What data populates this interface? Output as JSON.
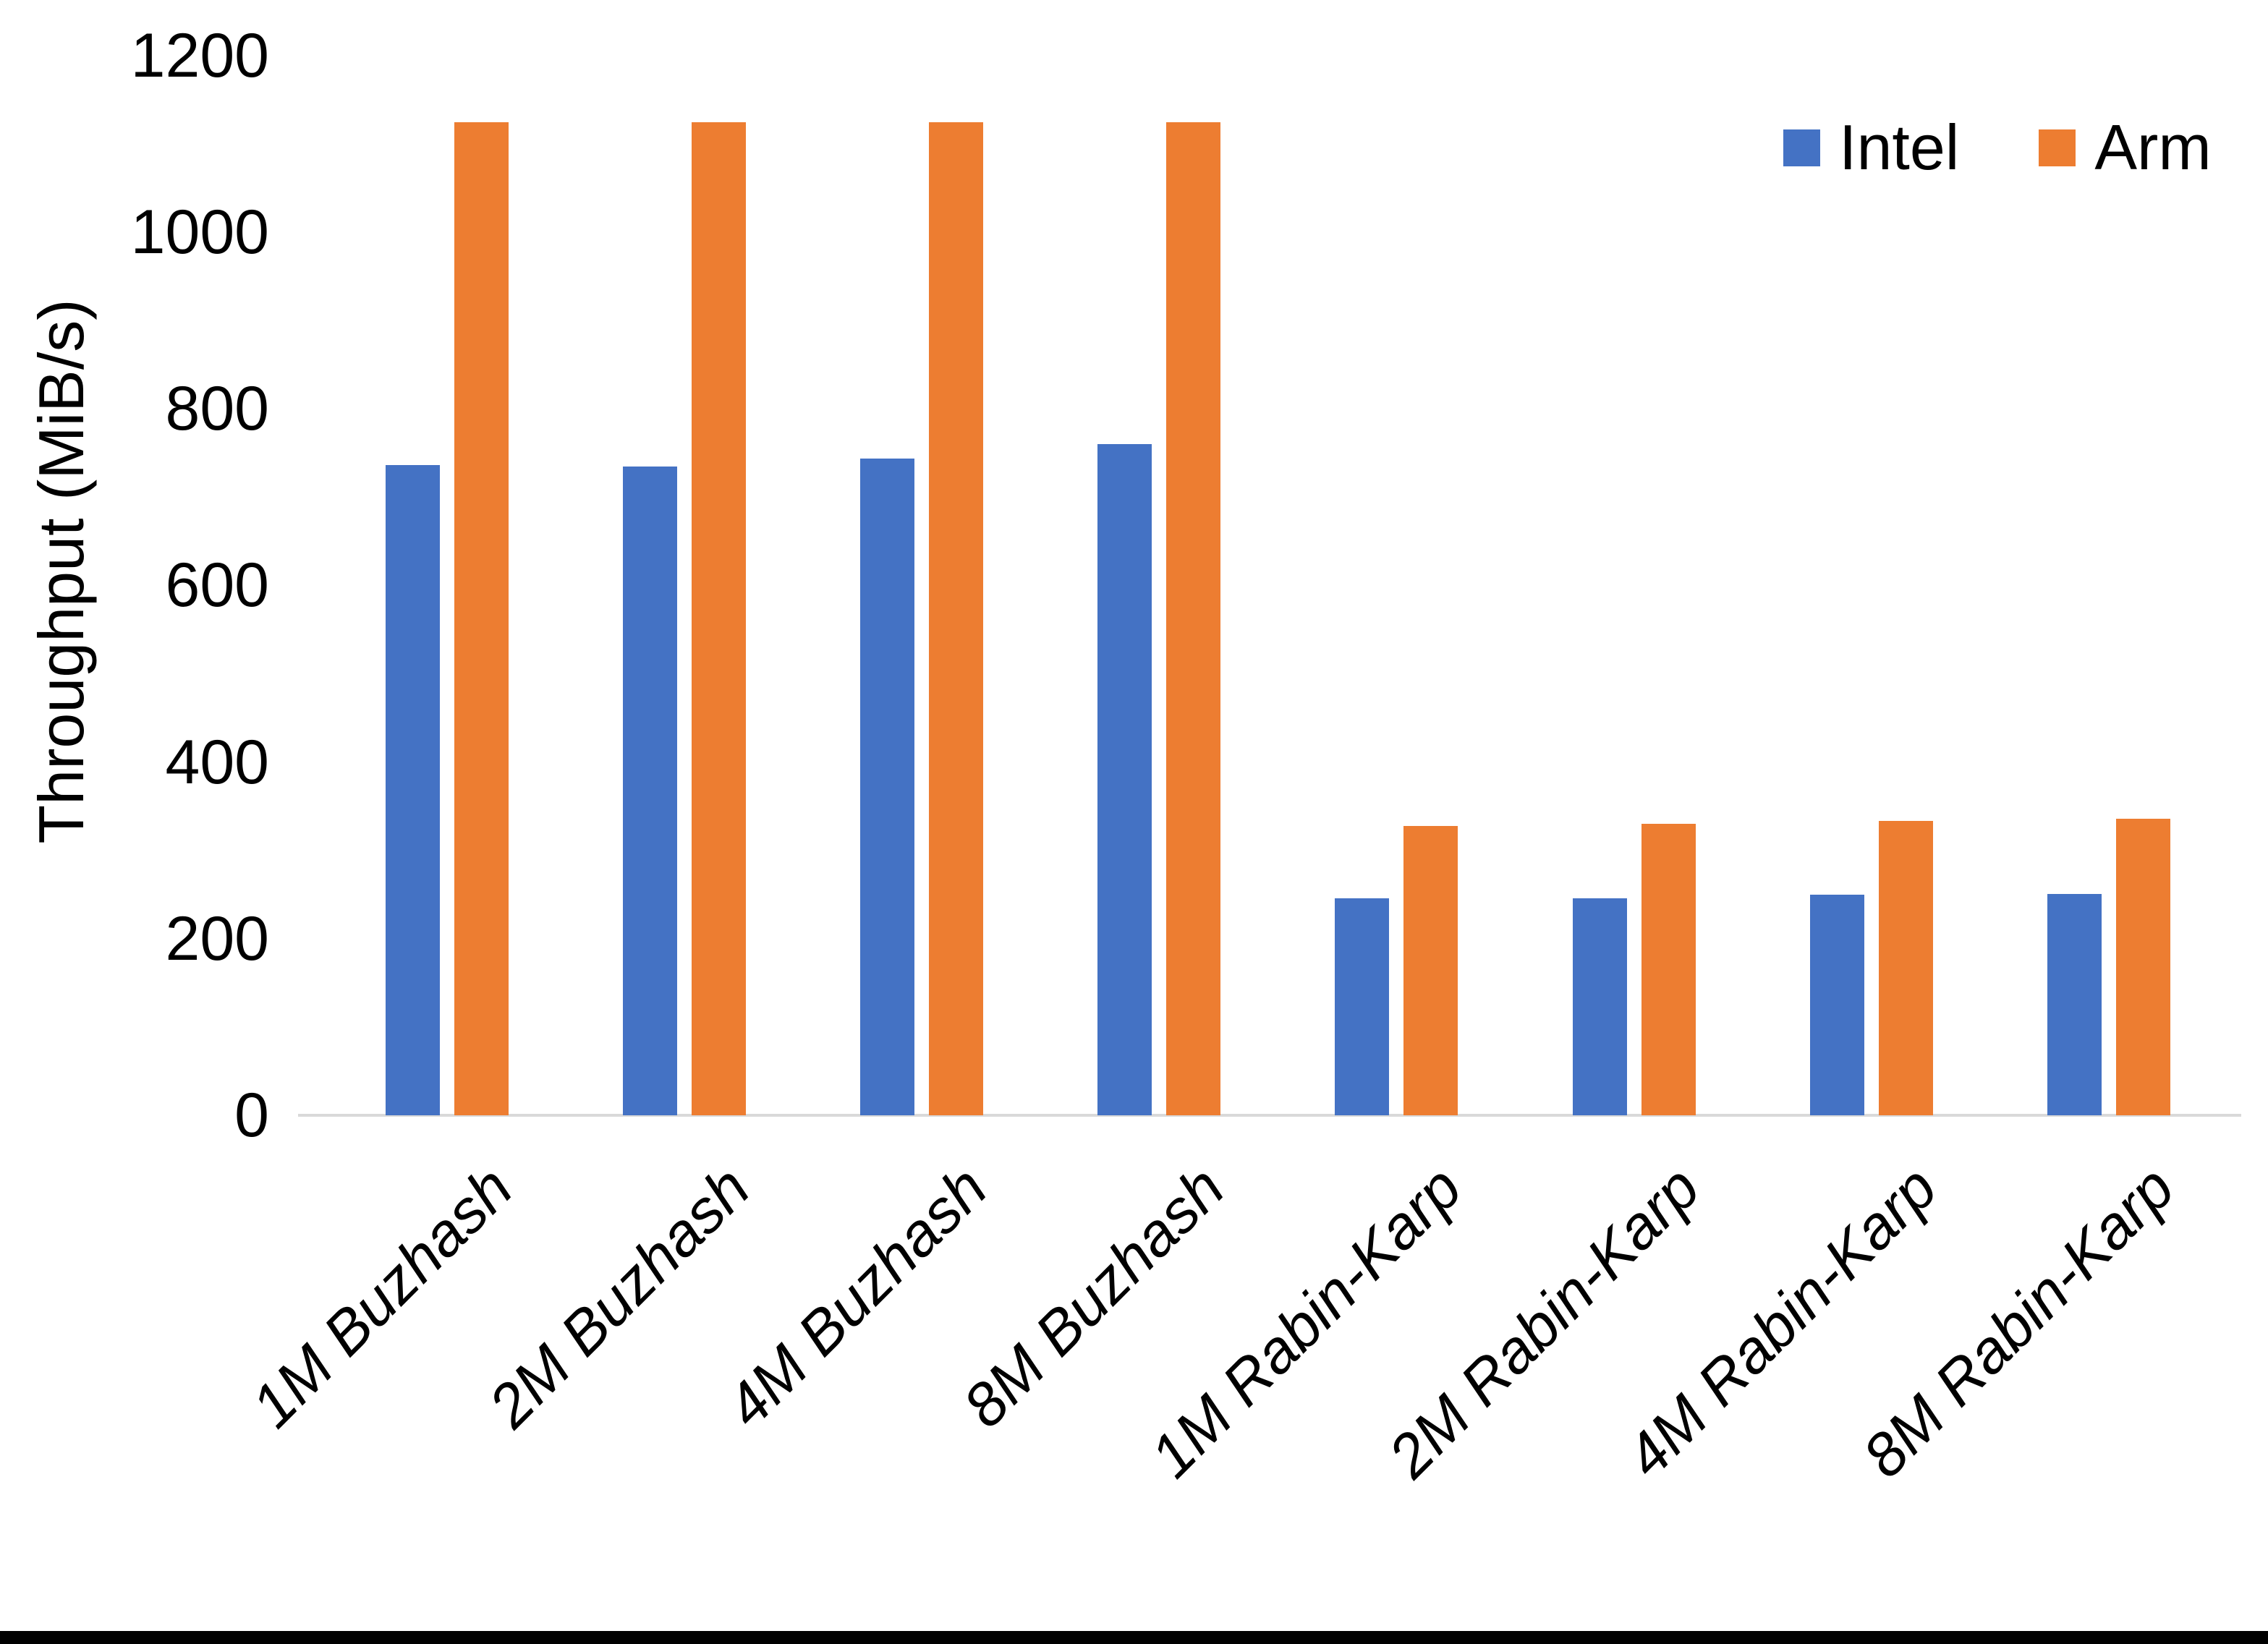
{
  "chart_data": {
    "type": "bar",
    "title": "",
    "xlabel": "",
    "ylabel": "Throughput (MiB/s)",
    "ylim": [
      0,
      1200
    ],
    "yticks": [
      0,
      200,
      400,
      600,
      800,
      1000,
      1200
    ],
    "grid": false,
    "legend_position": "top-right",
    "categories": [
      "1M Buzhash",
      "2M Buzhash",
      "4M Buzhash",
      "8M Buzhash",
      "1M Rabin-Karp",
      "2M Rabin-Karp",
      "4M Rabin-Karp",
      "8M Rabin-Karp"
    ],
    "series": [
      {
        "name": "Intel",
        "color": "#4472C4",
        "values": [
          736,
          735,
          744,
          760,
          246,
          246,
          250,
          251
        ]
      },
      {
        "name": "Arm",
        "color": "#ED7D31",
        "values": [
          1125,
          1125,
          1125,
          1125,
          328,
          330,
          333,
          336
        ]
      }
    ]
  },
  "colors": {
    "intel_bar": "#4472C4",
    "arm_bar": "#ED7D31",
    "axis_line": "#D9D9D9",
    "text": "#000000",
    "background": "#FFFFFF",
    "bottom_bar": "#000000"
  }
}
